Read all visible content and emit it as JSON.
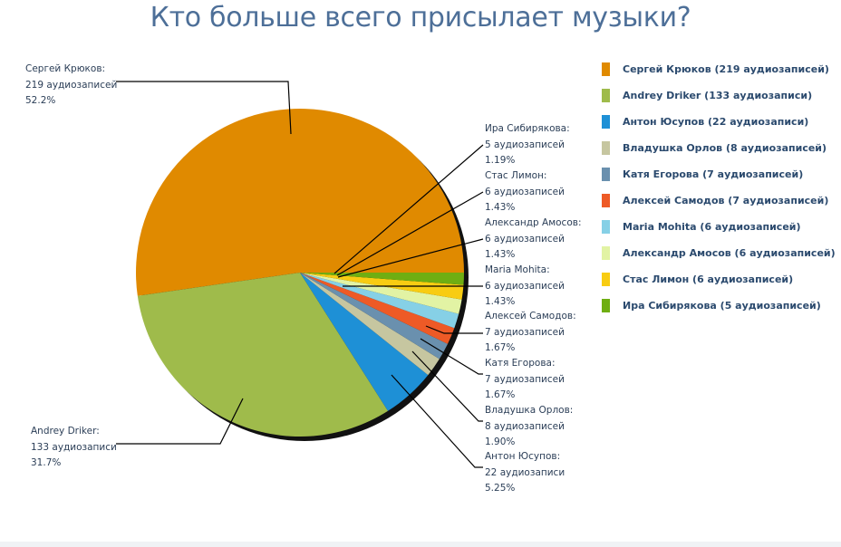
{
  "chart_data": {
    "type": "pie",
    "title": "Кто больше всего присылает музыки?",
    "unit_label_many": "аудиозаписей",
    "slices": [
      {
        "name": "Сергей Крюков",
        "value": 219,
        "count_text": "219 аудиозаписей",
        "percent": "52.2%",
        "color": "#e08a00",
        "legend": "Сергей Крюков (219 аудиозаписей)"
      },
      {
        "name": "Andrey Driker",
        "value": 133,
        "count_text": "133 аудиозаписи",
        "percent": "31.7%",
        "color": "#9fbb4b",
        "legend": "Andrey Driker (133 аудиозаписи)"
      },
      {
        "name": "Антон Юсупов",
        "value": 22,
        "count_text": "22 аудиозаписи",
        "percent": "5.25%",
        "color": "#1e90d6",
        "legend": "Антон Юсупов (22 аудиозаписи)"
      },
      {
        "name": "Владушка Орлов",
        "value": 8,
        "count_text": "8 аудиозаписей",
        "percent": "1.90%",
        "color": "#c6c6a0",
        "legend": "Владушка Орлов (8 аудиозаписей)"
      },
      {
        "name": "Катя Егорова",
        "value": 7,
        "count_text": "7 аудиозаписей",
        "percent": "1.67%",
        "color": "#6a90ae",
        "legend": "Катя Егорова (7 аудиозаписей)"
      },
      {
        "name": "Алексей Самодов",
        "value": 7,
        "count_text": "7 аудиозаписей",
        "percent": "1.67%",
        "color": "#ee5a26",
        "legend": "Алексей Самодов (7 аудиозаписей)"
      },
      {
        "name": "Maria Mohita",
        "value": 6,
        "count_text": "6 аудиозаписей",
        "percent": "1.43%",
        "color": "#86d0e6",
        "legend": "Maria Mohita (6 аудиозаписей)"
      },
      {
        "name": "Александр Амосов",
        "value": 6,
        "count_text": "6 аудиозаписей",
        "percent": "1.43%",
        "color": "#e2f3a4",
        "legend": "Александр Амосов (6 аудиозаписей)"
      },
      {
        "name": "Стас Лимон",
        "value": 6,
        "count_text": "6 аудиозаписей",
        "percent": "1.43%",
        "color": "#f8cc12",
        "legend": "Стас Лимон (6 аудиозаписей)"
      },
      {
        "name": "Ира Сибирякова",
        "value": 5,
        "count_text": "5 аудиозаписей",
        "percent": "1.19%",
        "color": "#6fae12",
        "legend": "Ира Сибирякова (5 аудиозаписей)"
      }
    ],
    "legend_position": "right"
  }
}
